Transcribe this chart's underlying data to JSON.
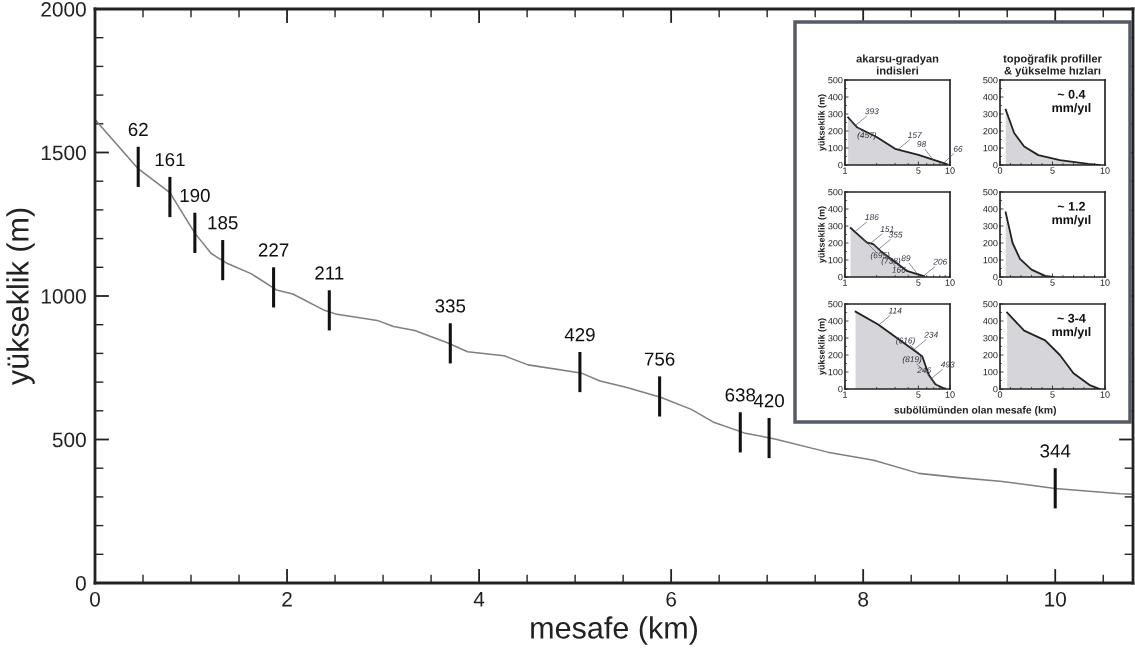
{
  "chart_data": [
    {
      "type": "line",
      "xlabel": "mesafe (km)",
      "ylabel": "yükseklik (m)",
      "xlim": [
        0,
        10.81
      ],
      "ylim": [
        0,
        2000
      ],
      "xticks": [
        0,
        2,
        4,
        6,
        8,
        10
      ],
      "yticks": [
        0,
        500,
        1000,
        1500,
        2000
      ],
      "grid": false,
      "legend": false,
      "series": [
        {
          "color": "#7f7f7f",
          "x": [
            0,
            0.445,
            0.78,
            1.04,
            1.21,
            1.38,
            1.63,
            1.89,
            2.06,
            2.39,
            2.52,
            2.94,
            3.11,
            3.33,
            3.67,
            3.88,
            4.26,
            4.51,
            5.06,
            5.26,
            5.53,
            5.89,
            6.21,
            6.45,
            6.76,
            7.08,
            7.63,
            8.11,
            8.58,
            8.97,
            9.45,
            10.0,
            10.68,
            10.81
          ],
          "values": [
            1615,
            1445,
            1360,
            1219,
            1148,
            1113,
            1077,
            1021,
            1007,
            950,
            936,
            915,
            894,
            880,
            837,
            806,
            792,
            760,
            732,
            704,
            682,
            647,
            605,
            559,
            523,
            502,
            456,
            428,
            382,
            368,
            354,
            329,
            311,
            309
          ]
        }
      ],
      "annotations": [
        {
          "text": "62",
          "x": 0.45,
          "y": 1450
        },
        {
          "text": "161",
          "x": 0.78,
          "y": 1345
        },
        {
          "text": "190",
          "x": 1.04,
          "y": 1220
        },
        {
          "text": "185",
          "x": 1.33,
          "y": 1125
        },
        {
          "text": "227",
          "x": 1.86,
          "y": 1030
        },
        {
          "text": "211",
          "x": 2.44,
          "y": 950
        },
        {
          "text": "335",
          "x": 3.7,
          "y": 835
        },
        {
          "text": "429",
          "x": 5.05,
          "y": 735
        },
        {
          "text": "756",
          "x": 5.88,
          "y": 650
        },
        {
          "text": "638",
          "x": 6.72,
          "y": 525
        },
        {
          "text": "420",
          "x": 7.02,
          "y": 505
        },
        {
          "text": "344",
          "x": 10.0,
          "y": 330
        }
      ]
    },
    {
      "type": "area",
      "title": "akarsu-gradyan\nindisleri",
      "ylabel": "yükseklik (m)",
      "log": "x",
      "xlim": [
        1,
        10
      ],
      "ylim": [
        0,
        500
      ],
      "xticks": [
        1,
        5,
        10
      ],
      "yticks": [
        0,
        100,
        200,
        300,
        400,
        500
      ],
      "series": [
        {
          "color": "#222222",
          "x": [
            1.07,
            1.3,
            2.0,
            3.0,
            5.0,
            7.0,
            9.3
          ],
          "values": [
            280,
            222,
            165,
            95,
            60,
            30,
            5
          ]
        }
      ],
      "annotations": [
        {
          "text": "393",
          "x": 1.25,
          "y": 232
        },
        {
          "text": "(457)",
          "x": 1.12,
          "y": 268
        },
        {
          "text": "157",
          "x": 3.2,
          "y": 92
        },
        {
          "text": "98",
          "x": 6.9,
          "y": 31
        },
        {
          "text": "66",
          "x": 8.7,
          "y": 11
        }
      ]
    },
    {
      "type": "area",
      "title": "topoğrafik profiller\n& yükselme hızları",
      "xlim": [
        0,
        10
      ],
      "ylim": [
        0,
        500
      ],
      "xticks": [
        0,
        5,
        10
      ],
      "yticks": [
        0,
        100,
        200,
        300,
        400,
        500
      ],
      "series": [
        {
          "color": "#222222",
          "x": [
            0.54,
            1.35,
            2.3,
            3.65,
            5.7,
            8.4,
            9.5
          ],
          "values": [
            326,
            188,
            109,
            58,
            29,
            7,
            0
          ]
        }
      ],
      "annotations": [
        "~ 0.4\nmm/yıl"
      ]
    },
    {
      "type": "area",
      "ylabel": "yükseklik (m)",
      "log": "x",
      "xlim": [
        1,
        10
      ],
      "ylim": [
        0,
        500
      ],
      "xticks": [
        1,
        5,
        10
      ],
      "yticks": [
        0,
        100,
        200,
        300,
        400,
        500
      ],
      "series": [
        {
          "color": "#222222",
          "x": [
            1.13,
            1.61,
            1.86,
            2.23,
            3.94,
            5.65
          ],
          "values": [
            288,
            204,
            193,
            148,
            34,
            5
          ]
        }
      ],
      "annotations": [
        {
          "text": "186",
          "x": 1.25,
          "y": 268
        },
        {
          "text": "(695)",
          "x": 1.5,
          "y": 220
        },
        {
          "text": "151",
          "x": 1.75,
          "y": 198
        },
        {
          "text": "(738)",
          "x": 1.9,
          "y": 188
        },
        {
          "text": "355",
          "x": 2.1,
          "y": 165
        },
        {
          "text": "166",
          "x": 2.4,
          "y": 135
        },
        {
          "text": "206",
          "x": 5.6,
          "y": 6
        },
        {
          "text": "89",
          "x": 4.9,
          "y": 18
        }
      ]
    },
    {
      "type": "area",
      "xlim": [
        0,
        10
      ],
      "ylim": [
        0,
        500
      ],
      "xticks": [
        0,
        5,
        10
      ],
      "yticks": [
        0,
        100,
        200,
        300,
        400,
        500
      ],
      "series": [
        {
          "color": "#222222",
          "x": [
            0.54,
            1.2,
            1.9,
            3.0,
            4.3,
            5.1
          ],
          "values": [
            380,
            200,
            107,
            43,
            7,
            0
          ]
        }
      ],
      "annotations": [
        "~ 1.2\nmm/yıl"
      ]
    },
    {
      "type": "area",
      "ylabel": "yükseklik (m)",
      "xlabel": "subölümünden olan mesafe (km)",
      "log": "x",
      "xlim": [
        1,
        10
      ],
      "ylim": [
        0,
        500
      ],
      "xticks": [
        1,
        5,
        10
      ],
      "yticks": [
        0,
        100,
        200,
        300,
        400,
        500
      ],
      "series": [
        {
          "color": "#222222",
          "x": [
            1.26,
            2.07,
            5.44,
            6.28,
            7.25,
            8.98
          ],
          "values": [
            455,
            379,
            193,
            83,
            28,
            0
          ]
        }
      ],
      "annotations": [
        {
          "text": "114",
          "x": 2.1,
          "y": 377
        },
        {
          "text": "(616)",
          "x": 5.44,
          "y": 193
        },
        {
          "text": "234",
          "x": 4.6,
          "y": 235
        },
        {
          "text": "(819)",
          "x": 6.28,
          "y": 83
        },
        {
          "text": "493",
          "x": 6.6,
          "y": 60
        },
        {
          "text": "246",
          "x": 7.7,
          "y": 18
        }
      ]
    },
    {
      "type": "area",
      "xlim": [
        0,
        10
      ],
      "ylim": [
        0,
        500
      ],
      "xticks": [
        0,
        5,
        10
      ],
      "yticks": [
        0,
        100,
        200,
        300,
        400,
        500
      ],
      "series": [
        {
          "color": "#222222",
          "x": [
            0.68,
            2.3,
            4.3,
            5.7,
            7.0,
            8.6,
            9.5
          ],
          "values": [
            450,
            343,
            286,
            200,
            93,
            21,
            0
          ]
        }
      ],
      "annotations": [
        "~ 3-4\nmm/yıl"
      ]
    }
  ]
}
